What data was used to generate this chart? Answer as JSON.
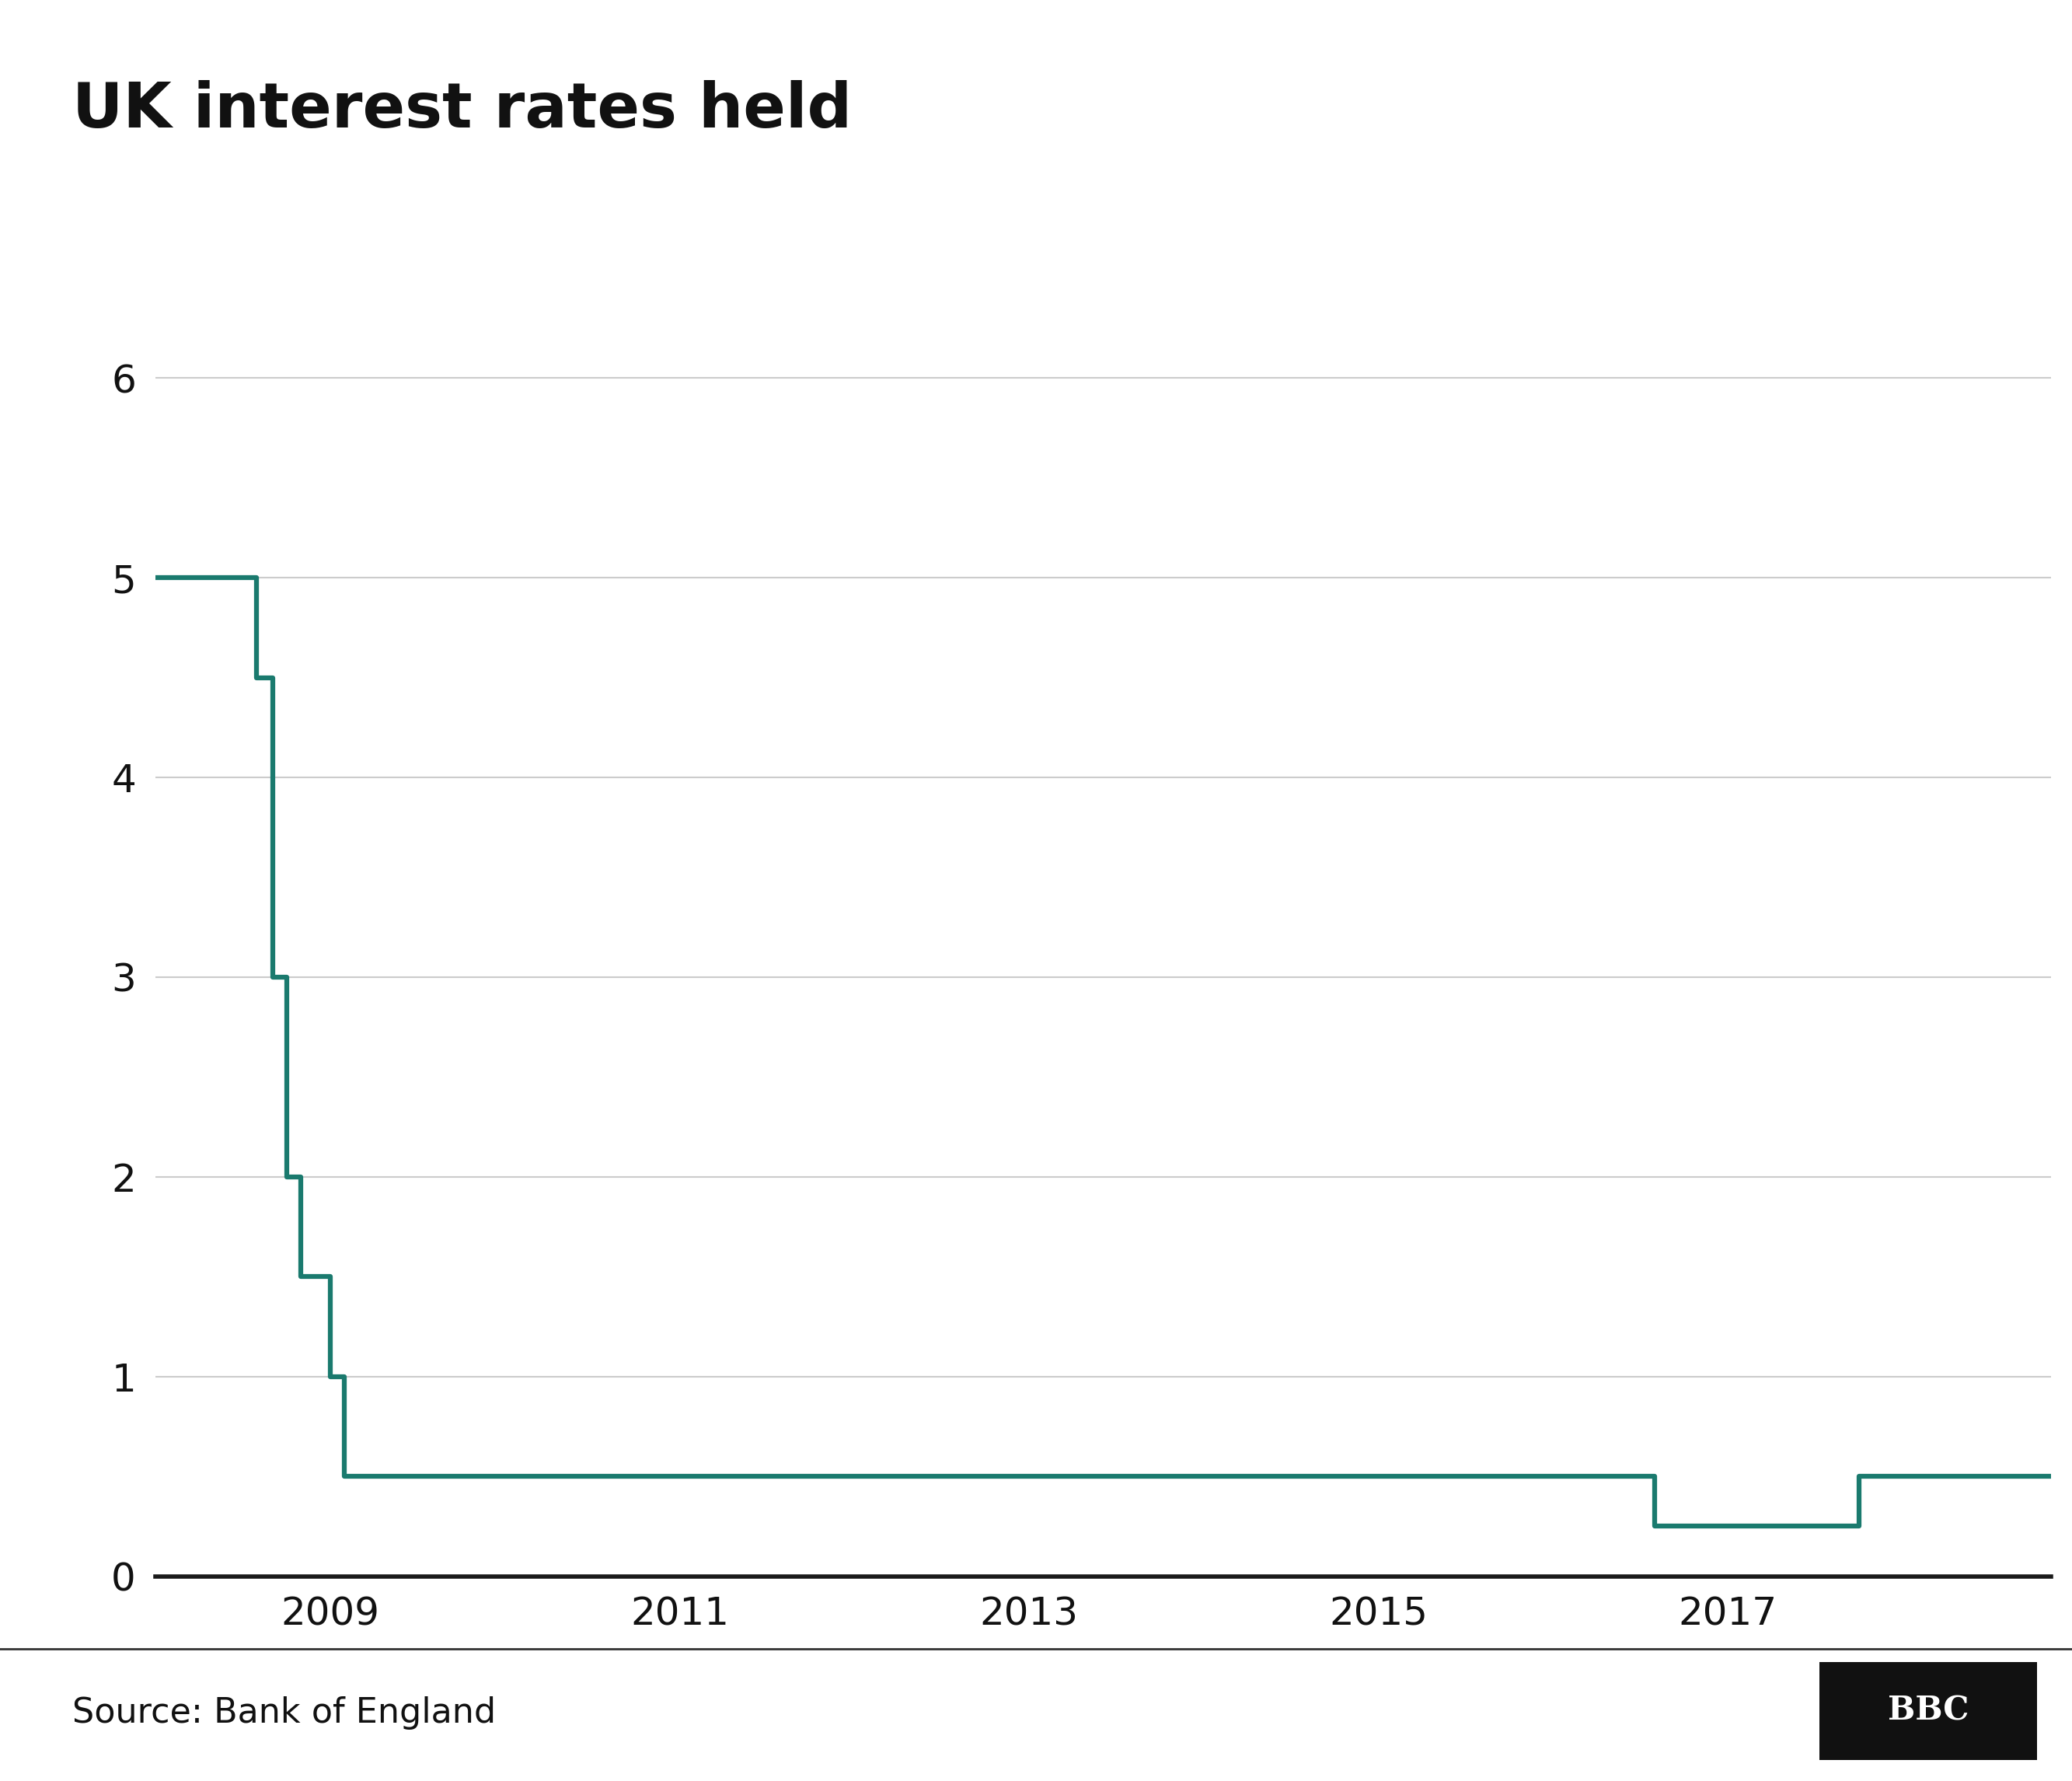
{
  "title": "UK interest rates held",
  "source": "Source: Bank of England",
  "line_color": "#1a7a6e",
  "line_width": 4.5,
  "background_color": "#ffffff",
  "grid_color": "#cccccc",
  "axis_color": "#1a1a1a",
  "title_fontsize": 58,
  "tick_fontsize": 36,
  "source_fontsize": 32,
  "bbc_fontsize": 30,
  "yticks": [
    0,
    1,
    2,
    3,
    4,
    5,
    6
  ],
  "ylim": [
    0,
    6.6
  ],
  "xlim_start": 2008.0,
  "xlim_end": 2018.85,
  "xtick_years": [
    2009,
    2011,
    2013,
    2015,
    2017
  ],
  "rate_data": [
    [
      2008.0,
      5.0
    ],
    [
      2008.58,
      5.0
    ],
    [
      2008.58,
      4.5
    ],
    [
      2008.67,
      4.5
    ],
    [
      2008.67,
      3.0
    ],
    [
      2008.75,
      3.0
    ],
    [
      2008.75,
      2.0
    ],
    [
      2008.83,
      2.0
    ],
    [
      2008.83,
      1.5
    ],
    [
      2009.0,
      1.5
    ],
    [
      2009.0,
      1.0
    ],
    [
      2009.08,
      1.0
    ],
    [
      2009.08,
      0.5
    ],
    [
      2016.58,
      0.5
    ],
    [
      2016.58,
      0.25
    ],
    [
      2017.75,
      0.25
    ],
    [
      2017.75,
      0.5
    ],
    [
      2018.85,
      0.5
    ]
  ]
}
